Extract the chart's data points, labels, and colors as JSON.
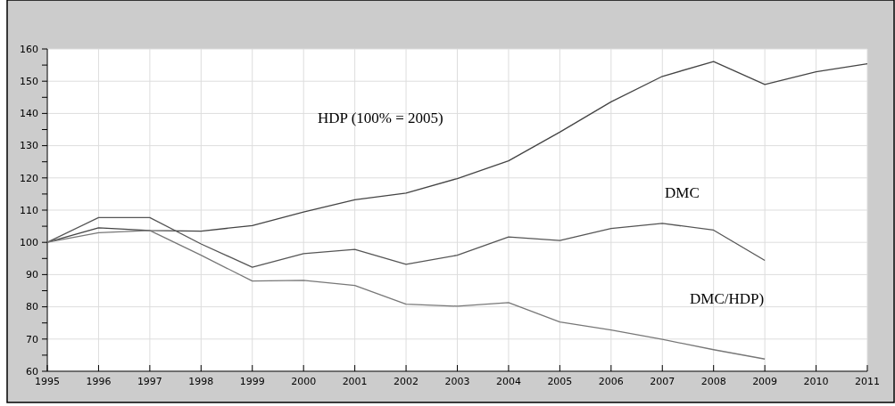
{
  "chart_data": {
    "type": "line",
    "x": [
      1995,
      1996,
      1997,
      1998,
      1999,
      2000,
      2001,
      2002,
      2003,
      2004,
      2005,
      2006,
      2007,
      2008,
      2009,
      2010,
      2011
    ],
    "series": [
      {
        "color": "#444444",
        "values": [
          100,
          104.5,
          103.7,
          103.5,
          105.2,
          109.4,
          113.2,
          115.3,
          119.8,
          125.3,
          134.2,
          143.6,
          151.5,
          156.1,
          149,
          152.9,
          155.4
        ]
      },
      {
        "color": "#555555",
        "values": [
          100,
          107.7,
          107.7,
          99.5,
          92.3,
          96.5,
          97.8,
          93.2,
          96,
          101.7,
          100.6,
          104.3,
          105.9,
          103.8,
          94.4,
          null,
          null
        ]
      },
      {
        "color": "#777777",
        "values": [
          100,
          103,
          103.7,
          96,
          88,
          88.2,
          86.6,
          80.8,
          80.2,
          81.3,
          75.3,
          72.8,
          69.9,
          66.7,
          63.8,
          null,
          null
        ]
      }
    ],
    "annotations": [
      "HDP (100% = 2005)",
      "DMC",
      "DMC/HDP)"
    ],
    "xlim": [
      1995,
      2011
    ],
    "xticks": [
      1995,
      1996,
      1997,
      1998,
      1999,
      2000,
      2001,
      2002,
      2003,
      2004,
      2005,
      2006,
      2007,
      2008,
      2009,
      2010,
      2011
    ],
    "ylim": [
      60,
      160
    ],
    "yticks": [
      60,
      {
        "value": 65,
        "label": null
      },
      70,
      {
        "value": 75,
        "label": null
      },
      80,
      {
        "value": 85,
        "label": null
      },
      90,
      {
        "value": 95,
        "label": null
      },
      100,
      {
        "value": 105,
        "label": null
      },
      110,
      {
        "value": 115,
        "label": null
      },
      120,
      {
        "value": 125,
        "label": null
      },
      130,
      {
        "value": 135,
        "label": null
      },
      140,
      {
        "value": 145,
        "label": null
      },
      150,
      {
        "value": 155,
        "label": null
      },
      160
    ],
    "grid": true,
    "marker": "none",
    "line_style": "solid"
  }
}
